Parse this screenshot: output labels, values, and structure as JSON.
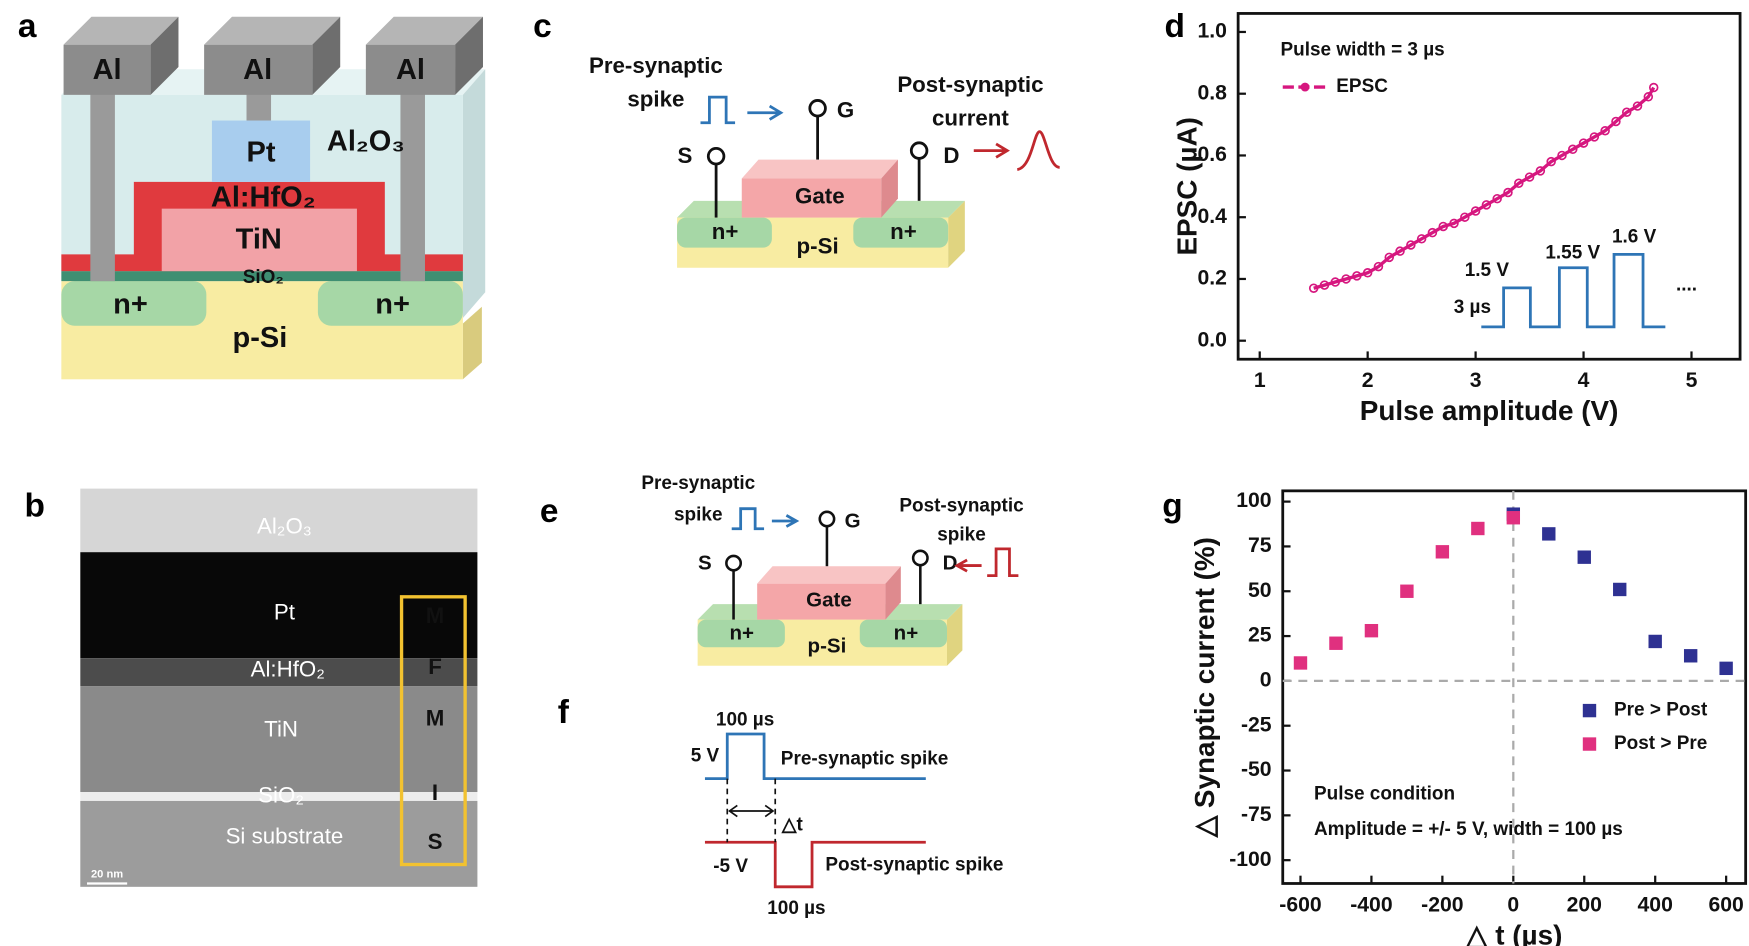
{
  "panel_labels": [
    "a",
    "b",
    "c",
    "d",
    "e",
    "f",
    "g"
  ],
  "device_a": {
    "metals": [
      "Al",
      "Al",
      "Al"
    ],
    "pt": "Pt",
    "oxide": "Al₂O₃",
    "ferro": "Al:HfO₂",
    "tin": "TiN",
    "sio2": "SiO₂",
    "n_left": "n+",
    "n_right": "n+",
    "substrate": "p-Si"
  },
  "tem_b": {
    "top": "Al₂O₃",
    "pt": "Pt",
    "ferro": "Al:HfO₂",
    "tin": "TiN",
    "sio2": "SiO₂",
    "substrate": "Si substrate",
    "scale": "20 nm",
    "stack": [
      "M",
      "F",
      "M",
      "I",
      "S"
    ]
  },
  "device_c": {
    "pre": [
      "Pre-synaptic",
      "spike"
    ],
    "post": [
      "Post-synaptic",
      "current"
    ],
    "gate_terminal": "G",
    "source": "S",
    "drain": "D",
    "gate": "Gate",
    "n_left": "n+",
    "n_right": "n+",
    "substrate": "p-Si"
  },
  "device_e": {
    "pre": [
      "Pre-synaptic",
      "spike"
    ],
    "post": [
      "Post-synaptic",
      "spike"
    ],
    "gate_terminal": "G",
    "source": "S",
    "drain": "D",
    "gate": "Gate",
    "n_left": "n+",
    "n_right": "n+",
    "substrate": "p-Si"
  },
  "waveform_f": {
    "pre_width": "100 µs",
    "pre_amp": "5 V",
    "pre_label": "Pre-synaptic spike",
    "delta": "△t",
    "post_amp": "-5 V",
    "post_label": "Post-synaptic spike",
    "post_width": "100 µs"
  },
  "chart_data": [
    {
      "type": "line",
      "x_label": "Pulse amplitude (V)",
      "y_label": "EPSC (µA)",
      "annotations": [
        "Pulse width = 3 µs"
      ],
      "annotation_corner": "upper left",
      "x": [
        1.5,
        1.6,
        1.7,
        1.8,
        1.9,
        2.0,
        2.1,
        2.2,
        2.3,
        2.4,
        2.5,
        2.6,
        2.7,
        2.8,
        2.9,
        3.0,
        3.1,
        3.2,
        3.3,
        3.4,
        3.5,
        3.6,
        3.7,
        3.8,
        3.9,
        4.0,
        4.1,
        4.2,
        4.3,
        4.4,
        4.5,
        4.6,
        4.65
      ],
      "series": [
        {
          "name": "EPSC",
          "color": "#d6177f",
          "values": [
            0.17,
            0.18,
            0.19,
            0.2,
            0.21,
            0.22,
            0.24,
            0.27,
            0.29,
            0.31,
            0.33,
            0.35,
            0.37,
            0.38,
            0.4,
            0.42,
            0.44,
            0.46,
            0.48,
            0.51,
            0.53,
            0.55,
            0.58,
            0.6,
            0.62,
            0.64,
            0.66,
            0.68,
            0.71,
            0.74,
            0.76,
            0.79,
            0.82
          ]
        }
      ],
      "xlim": [
        0.8,
        5.45
      ],
      "ylim": [
        -0.06,
        1.06
      ],
      "xticks": [
        1,
        2,
        3,
        4,
        5
      ],
      "yticks": [
        {
          "value": 0,
          "label": "0.0"
        },
        0.2,
        0.4,
        0.6,
        0.8,
        {
          "value": 1,
          "label": "1.0"
        }
      ],
      "legend": "upper left",
      "inset": {
        "labels": [
          "1.5 V",
          "1.55 V",
          "1.6 V"
        ],
        "width_label": "3 µs",
        "ellipsis": "...."
      }
    },
    {
      "type": "scatter",
      "x_label": "△ t (µs)",
      "y_label": "△ Synaptic current (%)",
      "annotations": [
        "Pulse condition",
        "Amplitude = +/- 5 V, width = 100 µs"
      ],
      "annotation_corner": "lower left",
      "series": [
        {
          "name": "Pre > Post",
          "color": "#2e3192",
          "x": [
            0,
            100,
            200,
            300,
            400,
            500,
            600
          ],
          "values": [
            93,
            82,
            69,
            51,
            22,
            14,
            7
          ]
        },
        {
          "name": "Post > Pre",
          "color": "#e0307f",
          "x": [
            -600,
            -500,
            -400,
            -300,
            -200,
            -100,
            0
          ],
          "values": [
            10,
            21,
            28,
            50,
            72,
            85,
            91
          ]
        }
      ],
      "xlim": [
        -650,
        655
      ],
      "ylim": [
        -113,
        106
      ],
      "xticks": [
        -600,
        -400,
        -200,
        0,
        200,
        400,
        600
      ],
      "yticks": [
        -100,
        -75,
        -50,
        -25,
        0,
        25,
        50,
        75,
        100
      ],
      "reference_lines": true,
      "legend": "lower right"
    }
  ]
}
